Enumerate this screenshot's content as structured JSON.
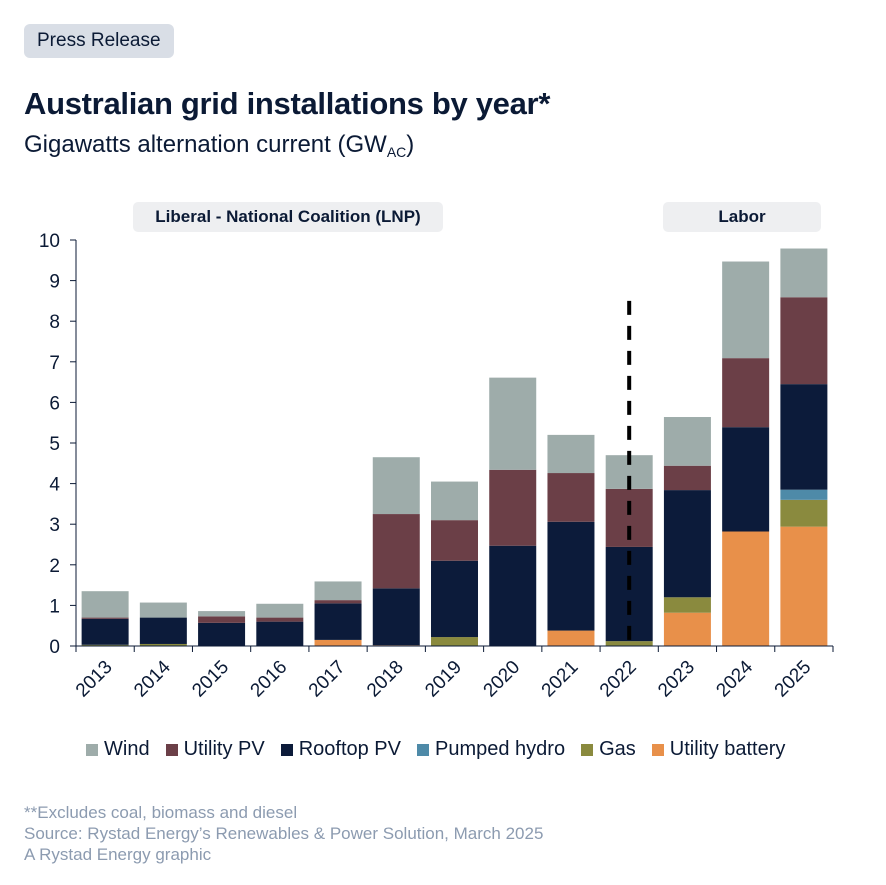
{
  "badge": "Press Release",
  "title": "Australian grid installations by year*",
  "subtitle": {
    "text": "Gigawatts alternation current (GW",
    "sub": "AC",
    "close": ")"
  },
  "eras": {
    "lnp": "Liberal - National Coalition (LNP)",
    "labor": "Labor"
  },
  "footer": {
    "note": "**Excludes coal, biomass and diesel",
    "source": "Source: Rystad Energy’s Renewables & Power Solution, March 2025",
    "credit": "A Rystad Energy graphic"
  },
  "chart_data": {
    "type": "bar",
    "stacked": true,
    "categories": [
      "2013",
      "2014",
      "2015",
      "2016",
      "2017",
      "2018",
      "2019",
      "2020",
      "2021",
      "2022",
      "2023",
      "2024",
      "2025"
    ],
    "ylim": [
      0,
      10
    ],
    "yticks": [
      0,
      1,
      2,
      3,
      4,
      5,
      6,
      7,
      8,
      9,
      10
    ],
    "legend_position": "bottom",
    "grid": false,
    "divider_between": [
      "2021",
      "2023"
    ],
    "series": [
      {
        "name": "Utility battery",
        "color": "#e8904a",
        "values": [
          0,
          0,
          0,
          0,
          0.15,
          0.02,
          0,
          0,
          0.38,
          0,
          0.82,
          2.82,
          2.94
        ]
      },
      {
        "name": "Gas",
        "color": "#8a8a3e",
        "values": [
          0.03,
          0.05,
          0,
          0,
          0,
          0,
          0.22,
          0,
          0,
          0.12,
          0.38,
          0,
          0.66
        ]
      },
      {
        "name": "Pumped hydro",
        "color": "#4e8aa8",
        "values": [
          0,
          0,
          0,
          0,
          0,
          0,
          0,
          0,
          0,
          0,
          0,
          0,
          0.25
        ]
      },
      {
        "name": "Rooftop PV",
        "color": "#0c1b3a",
        "values": [
          0.64,
          0.65,
          0.57,
          0.6,
          0.9,
          1.4,
          1.88,
          2.47,
          2.68,
          2.32,
          2.64,
          2.57,
          2.6
        ]
      },
      {
        "name": "Utility PV",
        "color": "#6b3f47",
        "values": [
          0.03,
          0,
          0.16,
          0.1,
          0.08,
          1.83,
          1.0,
          1.87,
          1.2,
          1.43,
          0.6,
          1.7,
          2.14
        ]
      },
      {
        "name": "Wind",
        "color": "#9eacaa",
        "values": [
          0.65,
          0.37,
          0.13,
          0.34,
          0.46,
          1.4,
          0.95,
          2.27,
          0.94,
          0.83,
          1.2,
          2.38,
          1.2
        ]
      }
    ]
  }
}
